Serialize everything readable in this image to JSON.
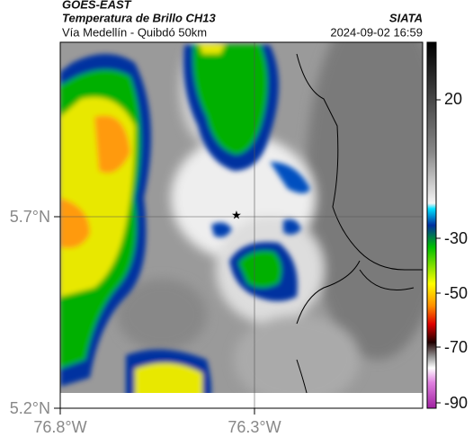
{
  "header": {
    "title": "GOES-EAST",
    "subtitle": "Temperatura de Brillo CH13",
    "source": "SIATA",
    "region": "Vía Medellín - Quibdó 50km",
    "timestamp": "2024-09-02 16:59"
  },
  "map": {
    "lat_labels": [
      "5.7°N",
      "5.2°N"
    ],
    "lon_labels": [
      "76.8°W",
      "76.3°W"
    ]
  },
  "colorbar": {
    "labels": [
      "20",
      "-30",
      "-50",
      "-70",
      "-90"
    ]
  }
}
